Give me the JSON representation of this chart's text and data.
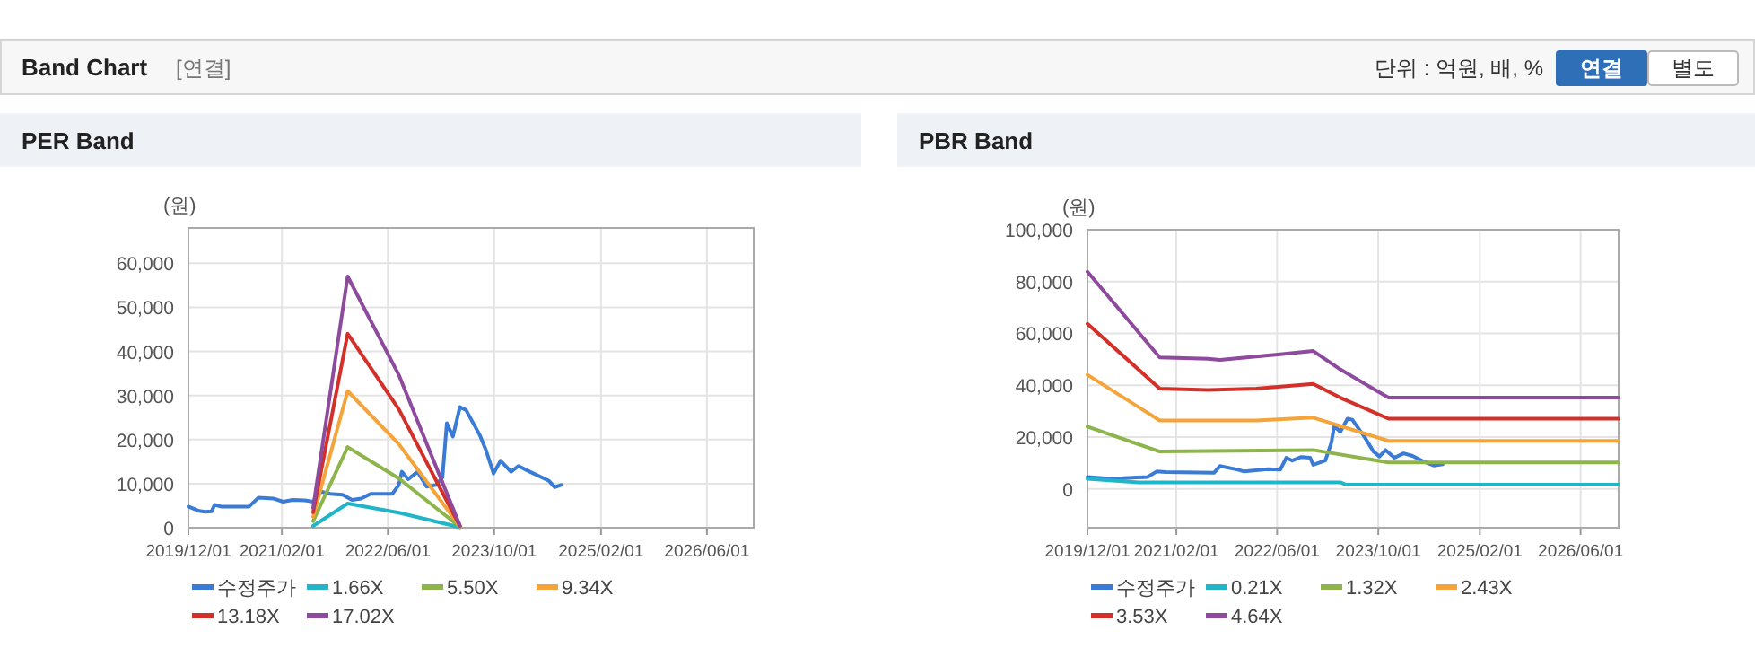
{
  "chart_data": [
    {
      "type": "line",
      "title": "PER Band",
      "ylabel": "(원)",
      "annotations": [
        "Band Chart",
        "[연결]",
        "단위 : 억원, 배, %",
        "연결",
        "별도"
      ],
      "grid": true,
      "legend": "bottom",
      "marker": "none",
      "line_style": "solid",
      "xlim": [
        "2019-12-01",
        "2027-01-01"
      ],
      "ylim": [
        0,
        68000
      ],
      "xticks": [
        {
          "value": "2019-12-01",
          "label": "2019/12/01"
        },
        {
          "value": "2021-02-01",
          "label": "2021/02/01"
        },
        {
          "value": "2022-06-01",
          "label": "2022/06/01"
        },
        {
          "value": "2023-10-01",
          "label": "2023/10/01"
        },
        {
          "value": "2025-02-01",
          "label": "2025/02/01"
        },
        {
          "value": "2026-06-01",
          "label": "2026/06/01"
        }
      ],
      "yticks": [
        0,
        {
          "value": 10000,
          "label": "10,000"
        },
        {
          "value": 20000,
          "label": "20,000"
        },
        {
          "value": 30000,
          "label": "30,000"
        },
        {
          "value": 40000,
          "label": "40,000"
        },
        {
          "value": 50000,
          "label": "50,000"
        },
        {
          "value": 60000,
          "label": "60,000"
        }
      ],
      "series": [
        {
          "name": "수정주가",
          "color": "#3a7bd5",
          "x": [
            "2019-12-01",
            "2020-01-19",
            "2020-02-16",
            "2020-03-16",
            "2020-03-30",
            "2020-04-28",
            "2020-09-03",
            "2020-10-16",
            "2020-12-26",
            "2021-02-07",
            "2021-03-22",
            "2021-05-18",
            "2021-06-24",
            "2021-07-29",
            "2021-09-10",
            "2021-11-06",
            "2021-12-19",
            "2022-01-30",
            "2022-03-14",
            "2022-06-22",
            "2022-07-21",
            "2022-08-04",
            "2022-09-02",
            "2022-10-15",
            "2022-11-26",
            "2023-01-08",
            "2023-02-06",
            "2023-02-26",
            "2023-03-26",
            "2023-04-27",
            "2023-05-25",
            "2023-07-27",
            "2023-08-25",
            "2023-09-28",
            "2023-10-30",
            "2023-12-17",
            "2024-01-20",
            "2024-03-12",
            "2024-06-06",
            "2024-07-04",
            "2024-08-02"
          ],
          "values": [
            4800,
            3800,
            3600,
            3700,
            5200,
            4800,
            4800,
            6800,
            6600,
            5900,
            6300,
            6200,
            5900,
            8200,
            7700,
            7500,
            6300,
            6600,
            7700,
            7700,
            9700,
            12700,
            11000,
            12700,
            9300,
            9700,
            11400,
            23700,
            20700,
            27400,
            26700,
            21000,
            17500,
            12300,
            15200,
            12700,
            14000,
            12700,
            10700,
            9200,
            9700
          ]
        },
        {
          "name": "1.66X",
          "color": "#22b5c8",
          "x": [
            "2021-06-24",
            "2021-11-29",
            "2022-07-21",
            "2023-04-27"
          ],
          "values": [
            400,
            5500,
            3400,
            100
          ]
        },
        {
          "name": "5.50X",
          "color": "#8db54b",
          "x": [
            "2021-06-24",
            "2021-11-29",
            "2022-07-21",
            "2023-04-27"
          ],
          "values": [
            1500,
            18300,
            11200,
            200
          ]
        },
        {
          "name": "9.34X",
          "color": "#f5a43a",
          "x": [
            "2021-06-24",
            "2021-11-29",
            "2022-07-21",
            "2023-04-27"
          ],
          "values": [
            2500,
            31000,
            19000,
            300
          ]
        },
        {
          "name": "13.18X",
          "color": "#d3302a",
          "x": [
            "2021-06-24",
            "2021-11-29",
            "2022-07-21",
            "2023-04-27"
          ],
          "values": [
            3500,
            44000,
            26900,
            400
          ]
        },
        {
          "name": "17.02X",
          "color": "#8e4a9c",
          "x": [
            "2021-06-24",
            "2021-11-29",
            "2022-07-21",
            "2023-04-27"
          ],
          "values": [
            4500,
            57000,
            34700,
            500
          ]
        }
      ]
    },
    {
      "type": "line",
      "title": "PBR Band",
      "ylabel": "(원)",
      "grid": true,
      "legend": "bottom",
      "marker": "none",
      "line_style": "solid",
      "xlim": [
        "2019-12-01",
        "2026-12-01"
      ],
      "ylim": [
        -15000,
        100000
      ],
      "xticks": [
        {
          "value": "2019-12-01",
          "label": "2019/12/01"
        },
        {
          "value": "2021-02-01",
          "label": "2021/02/01"
        },
        {
          "value": "2022-06-01",
          "label": "2022/06/01"
        },
        {
          "value": "2023-10-01",
          "label": "2023/10/01"
        },
        {
          "value": "2025-02-01",
          "label": "2025/02/01"
        },
        {
          "value": "2026-06-01",
          "label": "2026/06/01"
        }
      ],
      "yticks": [
        0,
        {
          "value": 20000,
          "label": "20,000"
        },
        {
          "value": 40000,
          "label": "40,000"
        },
        {
          "value": 60000,
          "label": "60,000"
        },
        {
          "value": 80000,
          "label": "80,000"
        },
        {
          "value": 100000,
          "label": "100,000"
        }
      ],
      "series": [
        {
          "name": "수정주가",
          "color": "#3a7bd5",
          "x": [
            "2019-12-01",
            "2020-03-26",
            "2020-09-16",
            "2020-10-29",
            "2020-12-12",
            "2021-08-01",
            "2021-08-30",
            "2021-11-25",
            "2021-12-24",
            "2022-04-19",
            "2022-06-16",
            "2022-07-15",
            "2022-08-13",
            "2022-09-25",
            "2022-11-07",
            "2022-11-22",
            "2023-01-19",
            "2023-02-17",
            "2023-03-03",
            "2023-04-01",
            "2023-05-06",
            "2023-05-29",
            "2023-07-26",
            "2023-09-08",
            "2023-10-07",
            "2023-11-05",
            "2023-12-18",
            "2024-01-31",
            "2024-03-14",
            "2024-05-11",
            "2024-06-24",
            "2024-08-06"
          ],
          "values": [
            4600,
            3900,
            4600,
            6700,
            6500,
            6200,
            8800,
            7400,
            6700,
            7600,
            7400,
            12000,
            10900,
            12300,
            12000,
            9300,
            10900,
            17800,
            24300,
            22000,
            27100,
            26700,
            20100,
            14400,
            12500,
            15000,
            12000,
            13700,
            12700,
            10400,
            9000,
            9500
          ]
        },
        {
          "name": "0.21X",
          "color": "#22b5c8",
          "x": [
            "2019-12-01",
            "2020-08-03",
            "2023-04-01",
            "2023-04-30",
            "2026-12-01"
          ],
          "values": [
            3900,
            2500,
            2500,
            1600,
            1600
          ]
        },
        {
          "name": "1.32X",
          "color": "#8db54b",
          "x": [
            "2019-12-01",
            "2020-11-13",
            "2022-11-22",
            "2023-11-19",
            "2026-12-01"
          ],
          "values": [
            24000,
            14400,
            15000,
            10200,
            10200
          ]
        },
        {
          "name": "2.43X",
          "color": "#f5a43a",
          "x": [
            "2019-12-01",
            "2020-11-13",
            "2022-02-20",
            "2022-11-22",
            "2023-11-19",
            "2026-12-01"
          ],
          "values": [
            44000,
            26400,
            26400,
            27500,
            18500,
            18500
          ]
        },
        {
          "name": "3.53X",
          "color": "#d3302a",
          "x": [
            "2019-12-01",
            "2020-11-13",
            "2021-07-03",
            "2022-02-20",
            "2022-11-22",
            "2023-04-01",
            "2023-11-19",
            "2026-12-01"
          ],
          "values": [
            63700,
            38700,
            38200,
            38700,
            40500,
            35200,
            27100,
            27100
          ]
        },
        {
          "name": "4.64X",
          "color": "#8e4a9c",
          "x": [
            "2019-12-01",
            "2020-11-13",
            "2021-07-03",
            "2021-08-30",
            "2022-06-16",
            "2022-11-22",
            "2023-04-01",
            "2023-11-19",
            "2026-12-01"
          ],
          "values": [
            83800,
            50700,
            50200,
            49800,
            51900,
            53200,
            46100,
            35200,
            35200
          ]
        }
      ]
    }
  ]
}
